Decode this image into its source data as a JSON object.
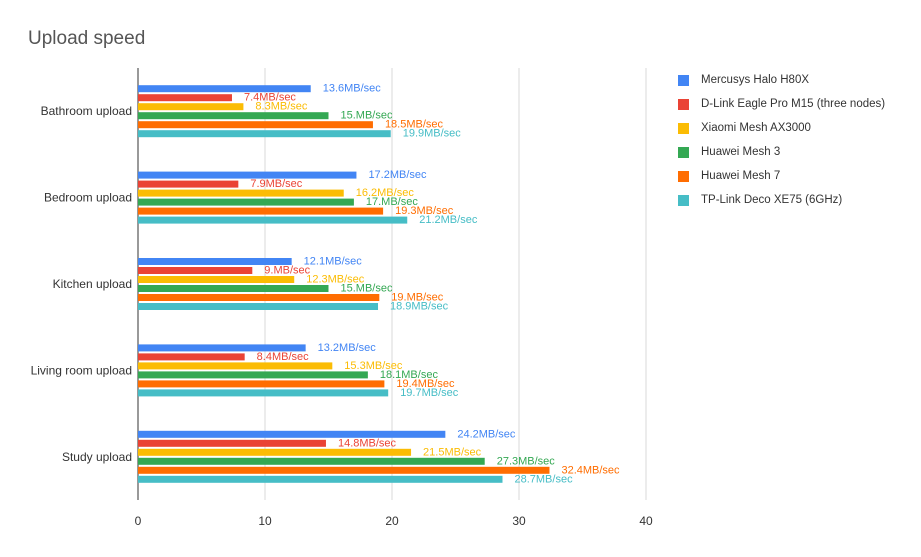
{
  "chart_data": {
    "type": "bar",
    "orientation": "horizontal",
    "title": "Upload speed",
    "xlabel": "",
    "ylabel": "",
    "categories": [
      "Bathroom upload",
      "Bedroom upload",
      "Kitchen upload",
      "Living room upload",
      "Study upload"
    ],
    "xlim": [
      0,
      40
    ],
    "xticks": [
      "0",
      "10",
      "20",
      "30",
      "40"
    ],
    "grid": "vertical",
    "legend_position": "right",
    "series": [
      {
        "name": "Mercusys Halo H80X",
        "color": "#4285f4",
        "values": [
          13.6,
          17.2,
          12.1,
          13.2,
          24.2
        ],
        "labels": [
          "13.6MB/sec",
          "17.2MB/sec",
          "12.1MB/sec",
          "13.2MB/sec",
          "24.2MB/sec"
        ]
      },
      {
        "name": "D-Link Eagle Pro M15 (three nodes)",
        "color": "#ea4335",
        "values": [
          7.4,
          7.9,
          9,
          8.4,
          14.8
        ],
        "labels": [
          "7.4MB/sec",
          "7.9MB/sec",
          "9.MB/sec",
          "8.4MB/sec",
          "14.8MB/sec"
        ]
      },
      {
        "name": "Xiaomi Mesh AX3000",
        "color": "#fbbc04",
        "values": [
          8.3,
          16.2,
          12.3,
          15.3,
          21.5
        ],
        "labels": [
          "8.3MB/sec",
          "16.2MB/sec",
          "12.3MB/sec",
          "15.3MB/sec",
          "21.5MB/sec"
        ]
      },
      {
        "name": "Huawei Mesh 3",
        "color": "#34a853",
        "values": [
          15,
          17,
          15,
          18.1,
          27.3
        ],
        "labels": [
          "15.MB/sec",
          "17.MB/sec",
          "15.MB/sec",
          "18.1MB/sec",
          "27.3MB/sec"
        ]
      },
      {
        "name": "Huawei Mesh 7",
        "color": "#ff6d01",
        "values": [
          18.5,
          19.3,
          19,
          19.4,
          32.4
        ],
        "labels": [
          "18.5MB/sec",
          "19.3MB/sec",
          "19.MB/sec",
          "19.4MB/sec",
          "32.4MB/sec"
        ]
      },
      {
        "name": "TP-Link Deco XE75 (6GHz)",
        "color": "#46bdc6",
        "values": [
          19.9,
          21.2,
          18.9,
          19.7,
          28.7
        ],
        "labels": [
          "19.9MB/sec",
          "21.2MB/sec",
          "18.9MB/sec",
          "19.7MB/sec",
          "28.7MB/sec"
        ]
      }
    ]
  }
}
